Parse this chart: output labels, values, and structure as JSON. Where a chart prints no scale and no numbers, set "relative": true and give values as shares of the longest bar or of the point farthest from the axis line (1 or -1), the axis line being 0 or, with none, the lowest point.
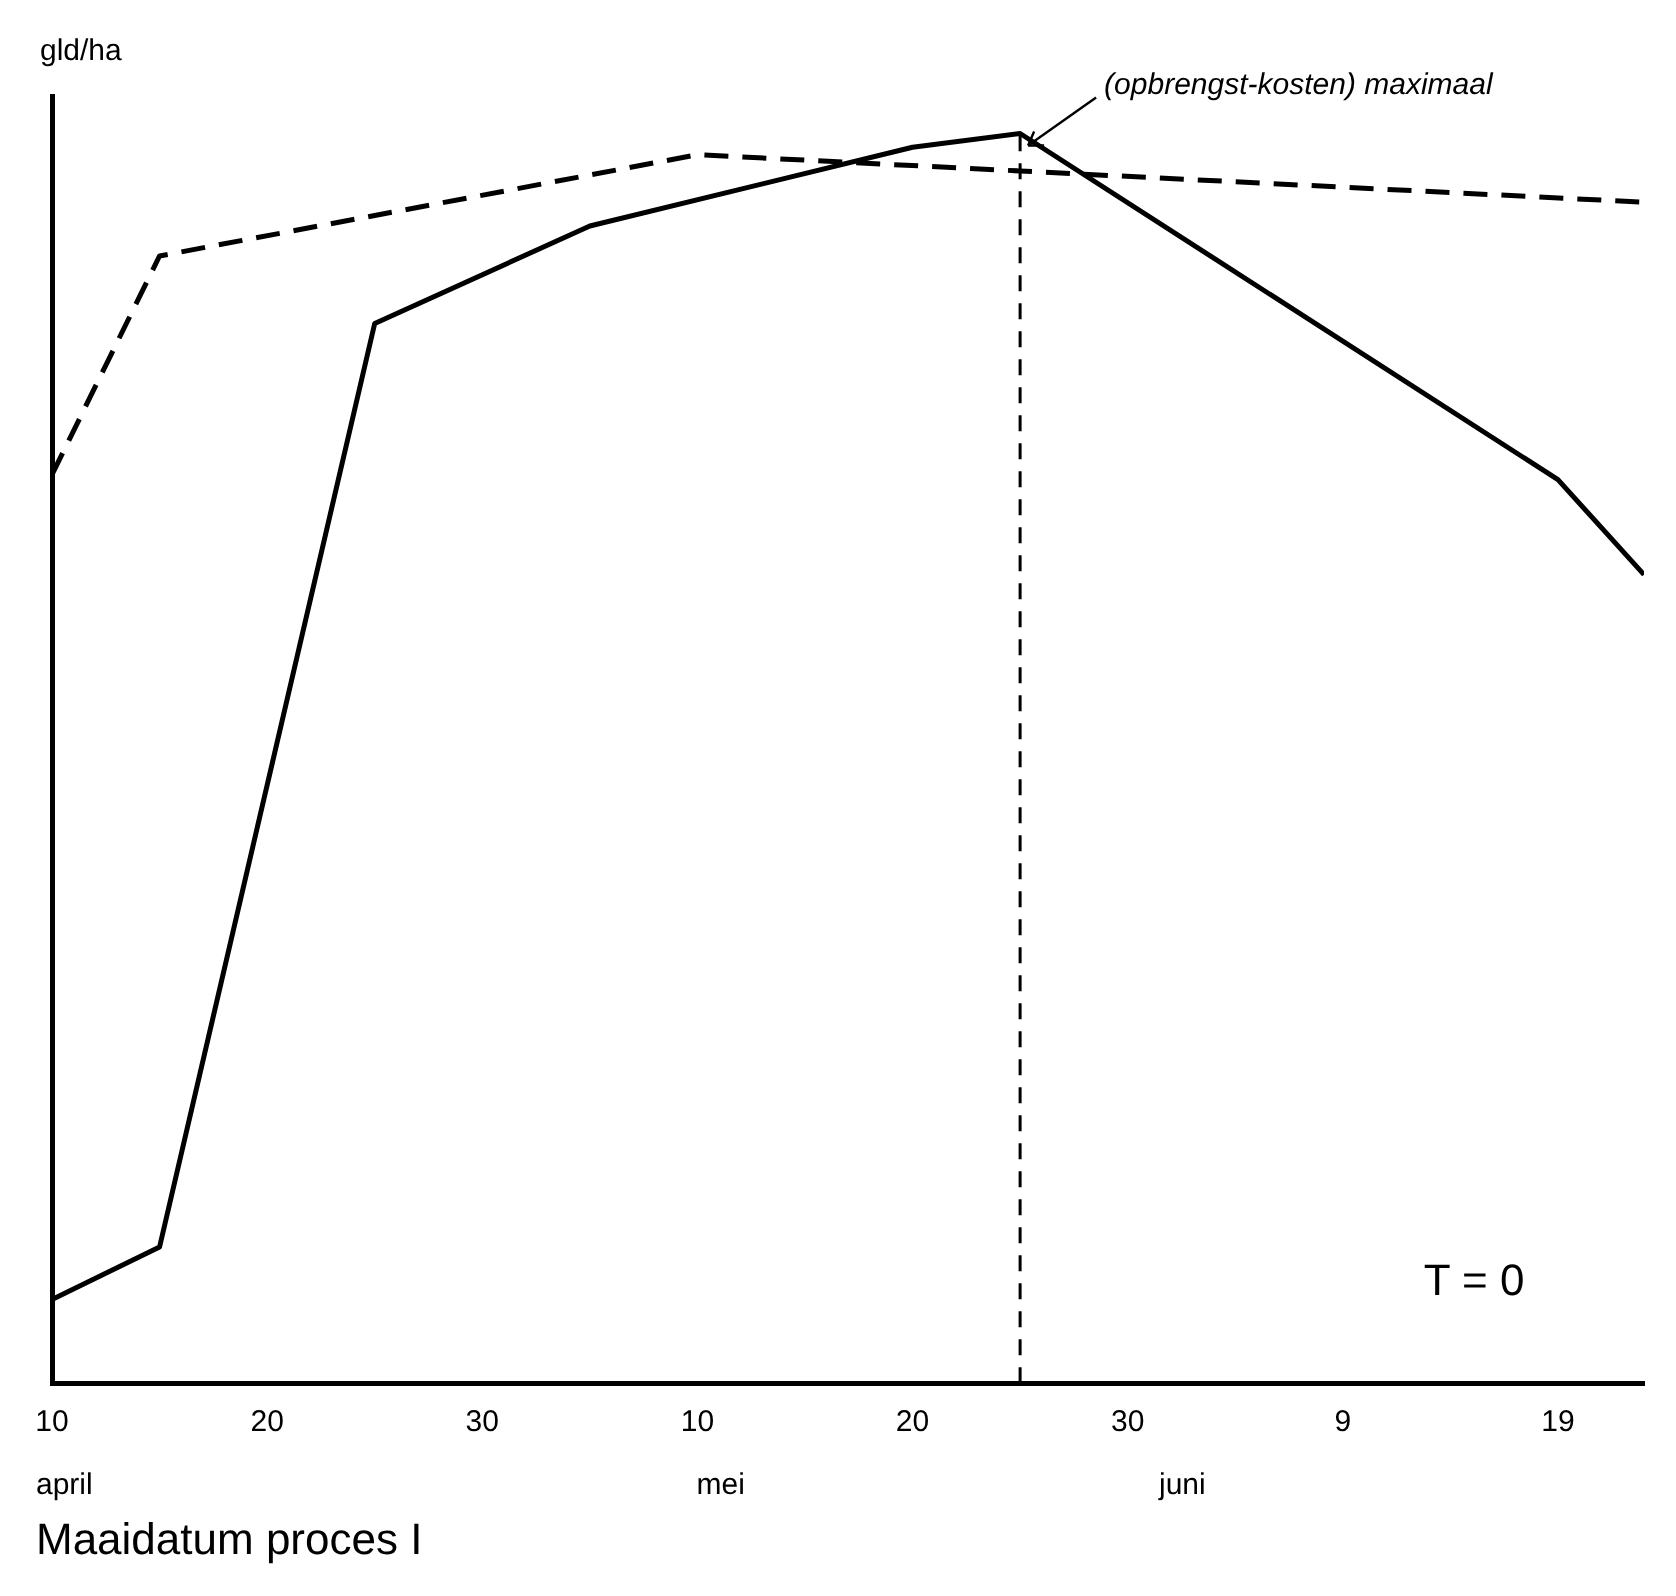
{
  "chart_data": {
    "type": "line",
    "title": "Maaidatum proces I",
    "ylabel": "gld/ha",
    "relative": true,
    "xlim": [
      "--04-10",
      "--06-23"
    ],
    "xticks": [
      {
        "value": "--04-10",
        "label": "10"
      },
      {
        "value": "--04-20",
        "label": "20"
      },
      {
        "value": "--04-30",
        "label": "30"
      },
      {
        "value": "--05-10",
        "label": "10"
      },
      {
        "value": "--05-20",
        "label": "20"
      },
      {
        "value": "--05-30",
        "label": "30"
      },
      {
        "value": "--06-09",
        "label": "9"
      },
      {
        "value": "--06-19",
        "label": "19"
      }
    ],
    "series": [
      {
        "color": "#000000",
        "line_style": "solid",
        "x": [
          "--04-10",
          "--04-15",
          "--04-25",
          "--05-05",
          "--05-20",
          "--05-25",
          "--06-19",
          "--06-23"
        ],
        "values": [
          0.067,
          0.109,
          0.848,
          0.926,
          0.989,
          1,
          0.723,
          0.647
        ]
      },
      {
        "color": "#000000",
        "line_style": "dashed",
        "x": [
          "--04-10",
          "--04-15",
          "--05-10",
          "--05-25",
          "--06-23"
        ],
        "values": [
          0.727,
          0.902,
          0.983,
          0.97,
          0.945
        ]
      }
    ],
    "ref_lines": [
      {
        "axis": "x",
        "value": "--05-25",
        "line_style": "dashed",
        "color": "#000000"
      }
    ],
    "annotations": [
      {
        "text": "(opbrengst-kosten) maximaal",
        "x": "--05-25",
        "y": 1
      },
      "april",
      "mei",
      "juni",
      "T = 0"
    ],
    "grid": false,
    "marker": "none"
  }
}
